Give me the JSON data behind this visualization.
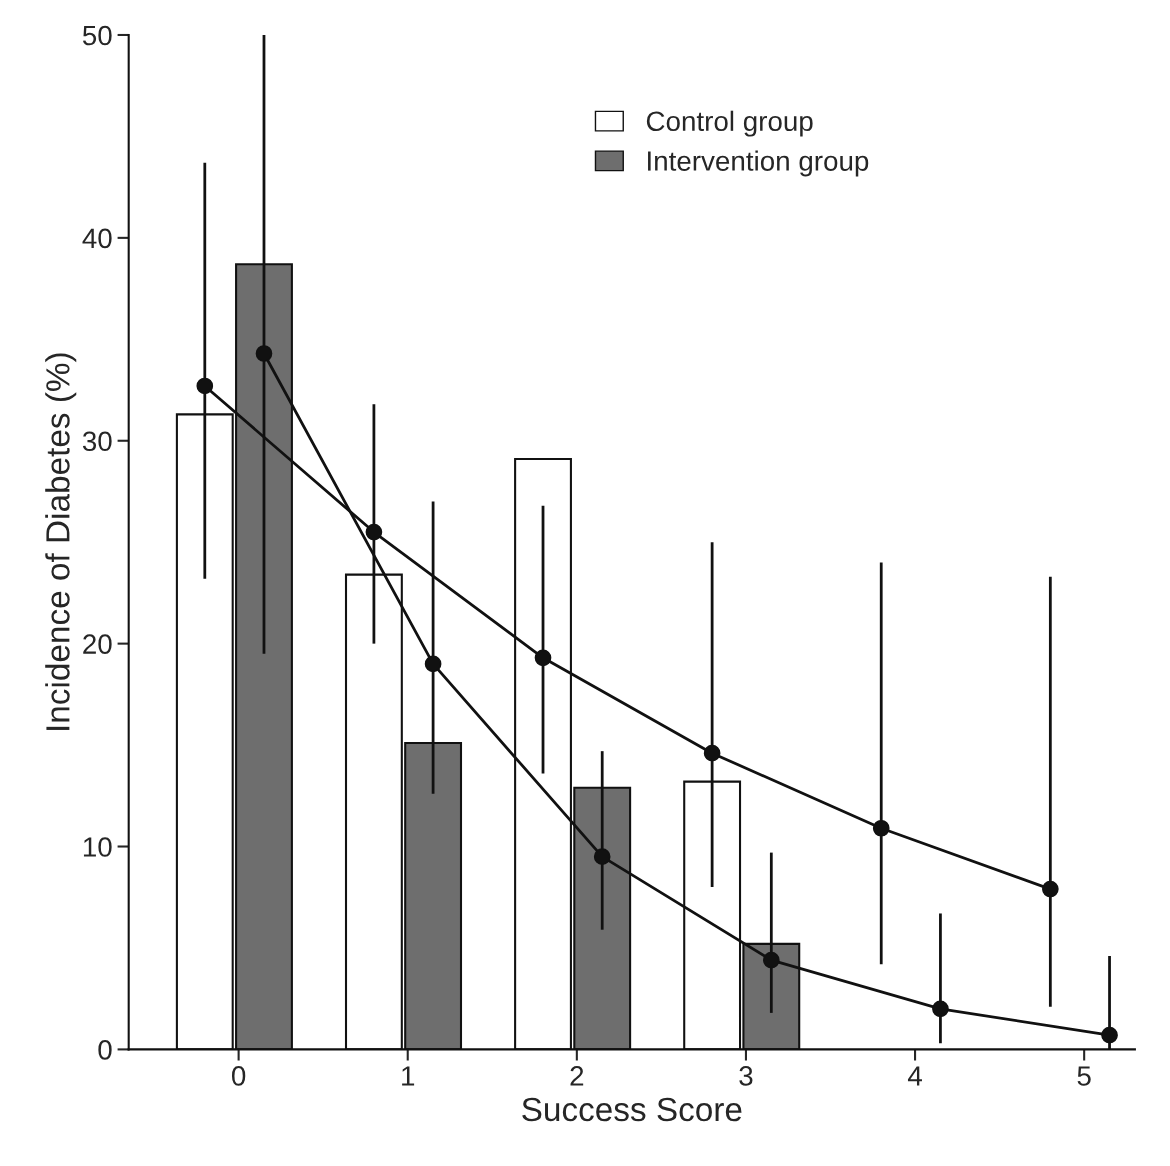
{
  "chart_data": {
    "type": "bar",
    "xlabel": "Success Score",
    "ylabel": "Incidence of Diabetes (%)",
    "series": [
      {
        "name": "Control group",
        "color": "#ffffff",
        "x": [
          -0.2,
          0.8,
          1.8,
          2.8
        ],
        "values": [
          31.3,
          23.4,
          29.1,
          13.2
        ]
      },
      {
        "name": "Intervention group",
        "color": "#6e6e6e",
        "x": [
          0.15,
          1.15,
          2.15,
          3.15
        ],
        "values": [
          38.7,
          15.1,
          12.9,
          5.2
        ]
      },
      {
        "type": "line",
        "color": "#111111",
        "x": [
          -0.2,
          0.8,
          1.8,
          2.8,
          3.8,
          4.8
        ],
        "values": [
          32.7,
          25.5,
          19.3,
          14.6,
          10.9,
          7.9
        ],
        "errors": [
          [
            23.2,
            43.7
          ],
          [
            20.0,
            31.8
          ],
          [
            13.6,
            26.8
          ],
          [
            8.0,
            25.0
          ],
          [
            4.2,
            24.0
          ],
          [
            2.1,
            23.3
          ]
        ]
      },
      {
        "type": "line",
        "color": "#111111",
        "x": [
          0.15,
          1.15,
          2.15,
          3.15,
          4.15,
          5.15
        ],
        "values": [
          34.3,
          19.0,
          9.5,
          4.4,
          2.0,
          0.7
        ],
        "errors": [
          [
            19.5,
            50
          ],
          [
            12.6,
            27.0
          ],
          [
            5.9,
            14.7
          ],
          [
            1.8,
            9.7
          ],
          [
            0.3,
            6.7
          ],
          [
            0,
            4.6
          ]
        ]
      }
    ],
    "xlim": [
      -0.65,
      5.3
    ],
    "xticks": [
      0,
      1,
      2,
      3,
      4,
      5
    ],
    "ylim": [
      0,
      50
    ],
    "yticks": [
      0,
      10,
      20,
      30,
      40,
      50
    ],
    "marker": "circle",
    "line_style": "solid",
    "grid": false,
    "legend": "top"
  }
}
